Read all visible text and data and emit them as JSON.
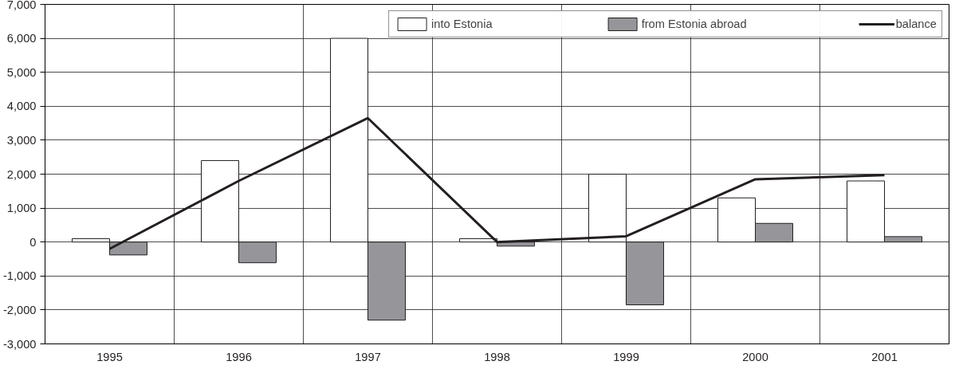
{
  "chart_data": {
    "type": "bar",
    "categories": [
      "1995",
      "1996",
      "1997",
      "1998",
      "1999",
      "2000",
      "2001"
    ],
    "series": [
      {
        "name": "into Estonia",
        "color": "#ffffff",
        "values": [
          100,
          2400,
          6000,
          100,
          2000,
          1300,
          1800
        ]
      },
      {
        "name": "from Estonia abroad",
        "color": "#96969a",
        "values": [
          -380,
          -610,
          -2300,
          -120,
          -1850,
          550,
          160
        ]
      },
      {
        "name": "balance",
        "type": "line",
        "color": "#231f20",
        "values": [
          -200,
          1800,
          3650,
          0,
          170,
          1850,
          1970
        ]
      }
    ],
    "ylim": [
      -3000,
      7000
    ],
    "yticks": [
      {
        "value": -3000,
        "label": "-3,000"
      },
      {
        "value": -2000,
        "label": "-2,000"
      },
      {
        "value": -1000,
        "label": "-1,000"
      },
      0,
      {
        "value": 1000,
        "label": "1,000"
      },
      {
        "value": 2000,
        "label": "2,000"
      },
      {
        "value": 3000,
        "label": "3,000"
      },
      {
        "value": 4000,
        "label": "4,000"
      },
      {
        "value": 5000,
        "label": "5,000"
      },
      {
        "value": 6000,
        "label": "6,000"
      },
      {
        "value": 7000,
        "label": "7,000"
      }
    ],
    "grid": true,
    "legend": "top"
  }
}
